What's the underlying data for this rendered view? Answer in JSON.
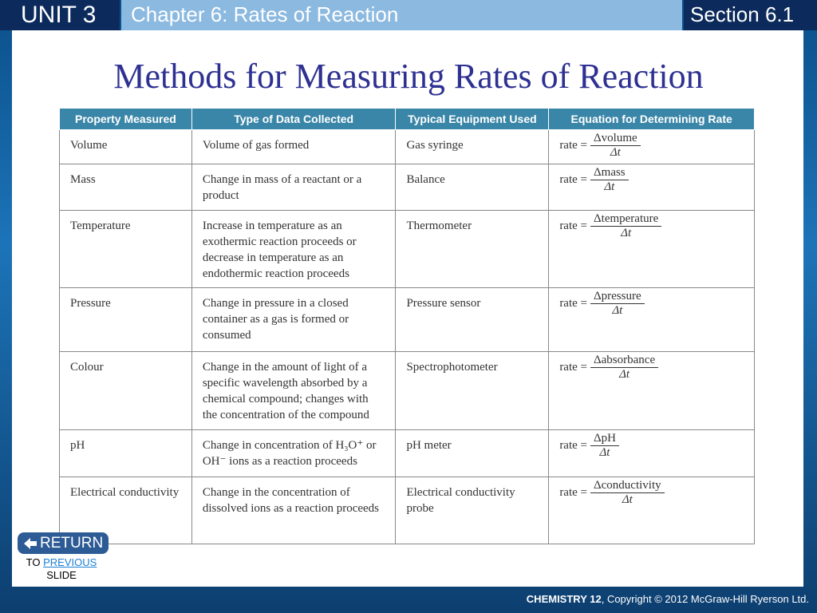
{
  "header": {
    "unit": "UNIT 3",
    "chapter": "Chapter 6: Rates of Reaction",
    "section": "Section 6.1"
  },
  "title": "Methods for Measuring Rates of Reaction",
  "table": {
    "headers": [
      "Property Measured",
      "Type of Data Collected",
      "Typical Equipment Used",
      "Equation for Determining Rate"
    ],
    "rows": [
      {
        "property": "Volume",
        "data": "Volume of gas formed",
        "equipment": "Gas syringe",
        "equation": {
          "lhs": "rate =",
          "numerator": "Δvolume",
          "denominator": "Δt"
        }
      },
      {
        "property": "Mass",
        "data": "Change in mass of a reactant or a product",
        "equipment": "Balance",
        "equation": {
          "lhs": "rate =",
          "numerator": "Δmass",
          "denominator": "Δt"
        }
      },
      {
        "property": "Temperature",
        "data": "Increase in temperature as an exothermic reaction proceeds or decrease in temperature as an endothermic reaction proceeds",
        "equipment": "Thermometer",
        "equation": {
          "lhs": "rate =",
          "numerator": "Δtemperature",
          "denominator": "Δt"
        }
      },
      {
        "property": "Pressure",
        "data": "Change in pressure in a closed container as a gas is formed or consumed",
        "equipment": "Pressure sensor",
        "equation": {
          "lhs": "rate =",
          "numerator": "Δpressure",
          "denominator": "Δt"
        }
      },
      {
        "property": "Colour",
        "data": "Change in the amount of light of a specific wavelength absorbed by a chemical compound; changes with the concentration of the compound",
        "equipment": "Spectrophotometer",
        "equation": {
          "lhs": "rate =",
          "numerator": "Δabsorbance",
          "denominator": "Δt"
        }
      },
      {
        "property": "pH",
        "data": "Change in concentration of H₃O⁺ or OH⁻ ions as a reaction proceeds",
        "equipment": "pH meter",
        "equation": {
          "lhs": "rate =",
          "numerator": "ΔpH",
          "denominator": "Δt"
        }
      },
      {
        "property": "Electrical conductivity",
        "data": "Change in the concentration of dissolved ions as a reaction proceeds",
        "equipment": "Electrical conductivity probe",
        "equation": {
          "lhs": "rate =",
          "numerator": "Δconductivity",
          "denominator": "Δt"
        }
      }
    ]
  },
  "return_button": {
    "label": "RETURN",
    "to": "TO",
    "link": "PREVIOUS",
    "slide": "SLIDE"
  },
  "footer": {
    "course": "CHEMISTRY 12",
    "copyright": ", Copyright © 2012 McGraw-Hill Ryerson Ltd."
  }
}
